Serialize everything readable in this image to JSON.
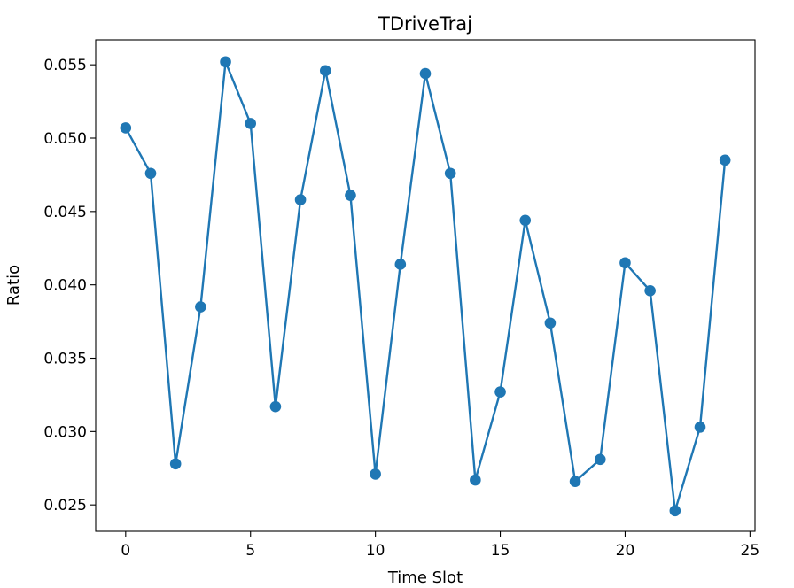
{
  "chart_data": {
    "type": "line",
    "title": "TDriveTraj",
    "xlabel": "Time Slot",
    "ylabel": "Ratio",
    "xlim": [
      -1.2,
      25.2
    ],
    "ylim": [
      0.0232,
      0.0567
    ],
    "xticks": [
      0,
      5,
      10,
      15,
      20,
      25
    ],
    "xtick_labels": [
      "0",
      "5",
      "10",
      "15",
      "20",
      "25"
    ],
    "yticks": [
      0.025,
      0.03,
      0.035,
      0.04,
      0.045,
      0.05,
      0.055
    ],
    "ytick_labels": [
      "0.025",
      "0.030",
      "0.035",
      "0.040",
      "0.045",
      "0.050",
      "0.055"
    ],
    "grid": false,
    "series": [
      {
        "color": "#1f77b4",
        "marker": "circle",
        "x": [
          0,
          1,
          2,
          3,
          4,
          5,
          6,
          7,
          8,
          9,
          10,
          11,
          12,
          13,
          14,
          15,
          16,
          17,
          18,
          19,
          20,
          21,
          22,
          23,
          24
        ],
        "y": [
          0.0507,
          0.0476,
          0.0278,
          0.0385,
          0.0552,
          0.051,
          0.0317,
          0.0458,
          0.0546,
          0.0461,
          0.0271,
          0.0414,
          0.0544,
          0.0476,
          0.0267,
          0.0327,
          0.0444,
          0.0374,
          0.0266,
          0.0281,
          0.0415,
          0.0396,
          0.0246,
          0.0303,
          0.0485
        ]
      }
    ]
  }
}
